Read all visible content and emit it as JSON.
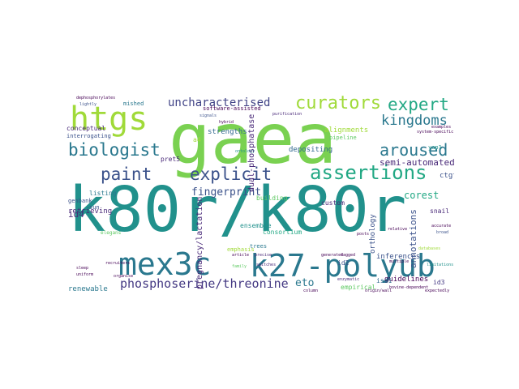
{
  "words": {
    "gaea": {
      "text": "gaea",
      "color": "#7ad151"
    },
    "k80r": {
      "text": "k80r/k80r",
      "color": "#21918c"
    },
    "mex3c": {
      "text": "mex3c",
      "color": "#2a788e"
    },
    "k27": {
      "text": "k27-polyub",
      "color": "#2a788e"
    },
    "htgs": {
      "text": "htgs",
      "color": "#a0da39"
    },
    "curators": {
      "text": "curators",
      "color": "#a0da39"
    },
    "expert": {
      "text": "expert",
      "color": "#22a884"
    },
    "uncharacterised": {
      "text": "uncharacterised",
      "color": "#414487"
    },
    "kingdoms": {
      "text": "kingdoms",
      "color": "#2a788e"
    },
    "biologist": {
      "text": "biologist",
      "color": "#2a788e"
    },
    "aroused": {
      "text": "aroused",
      "color": "#2a788e"
    },
    "paint": {
      "text": "paint",
      "color": "#3b528b"
    },
    "explicit": {
      "text": "explicit",
      "color": "#3b528b"
    },
    "assertions": {
      "text": "assertions",
      "color": "#22a884"
    },
    "semi": {
      "text": "semi-automated",
      "color": "#482878"
    },
    "fingerprint": {
      "text": "fingerprint",
      "color": "#3b528b"
    },
    "id4": {
      "text": "id4",
      "color": "#482878"
    },
    "phospho": {
      "text": "phosphoserine/threonine",
      "color": "#443983"
    },
    "eto": {
      "text": "eto",
      "color": "#2a788e"
    },
    "corest": {
      "text": "corest",
      "color": "#22a884"
    },
    "dual": {
      "text": "dual-phosphatase",
      "color": "#482878"
    },
    "strengths": {
      "text": "strengths",
      "color": "#31688e"
    },
    "depositing": {
      "text": "depositing",
      "color": "#31688e"
    },
    "alignments": {
      "text": "alignments",
      "color": "#a0da39"
    },
    "software": {
      "text": "software-assisted",
      "color": "#440154"
    },
    "interrogating": {
      "text": "interrogating",
      "color": "#3b528b"
    },
    "conceptual": {
      "text": "conceptual",
      "color": "#482878"
    },
    "mished": {
      "text": "mished",
      "color": "#2a788e"
    },
    "pipeline": {
      "text": "pipeline",
      "color": "#5ec962"
    },
    "inferences": {
      "text": "inferences",
      "color": "#3b528b"
    },
    "orthology": {
      "text": "orthology",
      "color": "#3b528b"
    },
    "annotations": {
      "text": "annotations",
      "color": "#3b528b"
    },
    "guidelines": {
      "text": "guidelines",
      "color": "#440154"
    },
    "empirical": {
      "text": "empirical",
      "color": "#5ec962"
    },
    "consortium": {
      "text": "consortium",
      "color": "#22a884"
    },
    "isd1": {
      "text": "isd1",
      "color": "#31688e"
    },
    "id3": {
      "text": "id3",
      "color": "#443983"
    },
    "id2": {
      "text": "id2",
      "color": "#3b528b"
    },
    "renewable": {
      "text": "renewable",
      "color": "#2a788e"
    },
    "retrieving": {
      "text": "retrieving",
      "color": "#482878"
    },
    "listing": {
      "text": "listing",
      "color": "#2a788e"
    },
    "genbank": {
      "text": "genbank",
      "color": "#3b528b"
    },
    "ensemble": {
      "text": "ensemble",
      "color": "#21918c"
    },
    "building": {
      "text": "building",
      "color": "#5ec962"
    },
    "custom": {
      "text": "custom",
      "color": "#482878"
    },
    "trees": {
      "text": "trees",
      "color": "#2a788e"
    },
    "emphasis": {
      "text": "emphasis",
      "color": "#a0da39"
    },
    "pregnancy": {
      "text": "pregnancy/lactation",
      "color": "#482878"
    },
    "ctgf": {
      "text": "ctgf",
      "color": "#3b528b"
    },
    "snail": {
      "text": "snail",
      "color": "#482878"
    },
    "yap1": {
      "text": "yap1",
      "color": "#21918c"
    },
    "a4": {
      "text": "a4",
      "color": "#a0da39"
    },
    "pret5": {
      "text": "pret5",
      "color": "#482878"
    },
    "sun": {
      "text": "sun",
      "color": "#3b528b"
    },
    "ontology": {
      "text": "ontology",
      "color": "#21918c"
    },
    "dephosphorylates": {
      "text": "dephosphorylates",
      "color": "#440154"
    },
    "lightly": {
      "text": "lightly",
      "color": "#3b528b"
    },
    "examples": {
      "text": "examples",
      "color": "#440154"
    },
    "system": {
      "text": "system-specific",
      "color": "#440154"
    },
    "signals": {
      "text": "signals",
      "color": "#3b528b"
    },
    "purification": {
      "text": "purification",
      "color": "#482878"
    },
    "hybrid": {
      "text": "hybrid",
      "color": "#440154"
    },
    "elegans": {
      "text": "elegans",
      "color": "#5ec962"
    },
    "family": {
      "text": "family",
      "color": "#5ec962"
    },
    "limitations": {
      "text": "limitations",
      "color": "#21918c"
    },
    "databases": {
      "text": "databases",
      "color": "#a0da39"
    },
    "accurate": {
      "text": "accurate",
      "color": "#440154"
    },
    "broad": {
      "text": "broad",
      "color": "#3b528b"
    },
    "expectedly": {
      "text": "expectedly",
      "color": "#440154"
    },
    "generated": {
      "text": "generated",
      "color": "#440154"
    },
    "column": {
      "text": "column",
      "color": "#440154"
    },
    "origin": {
      "text": "origin/wall",
      "color": "#440154"
    },
    "switches": {
      "text": "switches",
      "color": "#482878"
    },
    "recruiters": {
      "text": "recruiters",
      "color": "#440154"
    },
    "uniform": {
      "text": "uniform",
      "color": "#440154"
    },
    "sleep": {
      "text": "sleep",
      "color": "#440154"
    },
    "organise": {
      "text": "organise",
      "color": "#440154"
    },
    "enzymatic": {
      "text": "enzymatic",
      "color": "#482878"
    },
    "article": {
      "text": "article",
      "color": "#440154"
    },
    "precise": {
      "text": "precise",
      "color": "#482878"
    },
    "posts": {
      "text": "posts",
      "color": "#440154"
    },
    "tagged": {
      "text": "tagged",
      "color": "#440154"
    },
    "multiple": {
      "text": "multiple",
      "color": "#440154"
    },
    "relative": {
      "text": "relative",
      "color": "#440154"
    },
    "bovine": {
      "text": "bovine-dependent",
      "color": "#440154"
    }
  }
}
